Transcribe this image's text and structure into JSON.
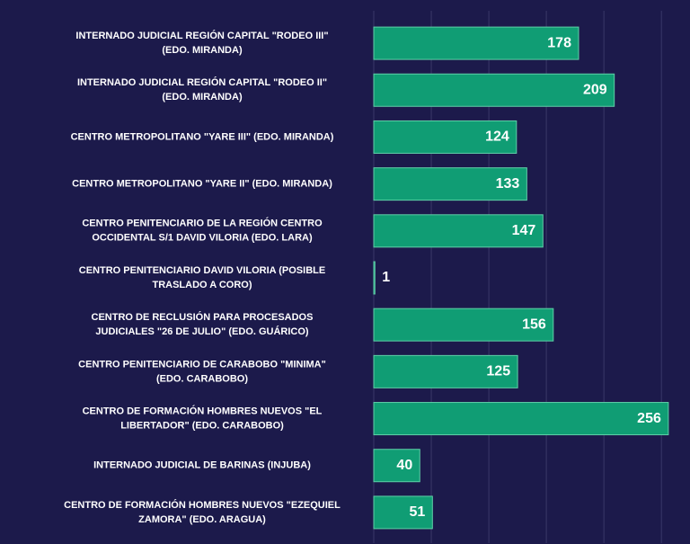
{
  "chart_data": {
    "type": "bar",
    "orientation": "horizontal",
    "categories": [
      [
        "INTERNADO JUDICIAL REGIÓN CAPITAL \"RODEO III\"",
        "(EDO. MIRANDA)"
      ],
      [
        "INTERNADO JUDICIAL REGIÓN CAPITAL \"RODEO II\"",
        "(EDO. MIRANDA)"
      ],
      [
        "CENTRO METROPOLITANO \"YARE III\" (EDO. MIRANDA)"
      ],
      [
        "CENTRO METROPOLITANO \"YARE II\" (EDO. MIRANDA)"
      ],
      [
        "CENTRO PENITENCIARIO DE LA REGIÓN CENTRO",
        "OCCIDENTAL S/1 DAVID VILORIA (EDO. LARA)"
      ],
      [
        "CENTRO PENITENCIARIO DAVID VILORIA (POSIBLE",
        "TRASLADO A CORO)"
      ],
      [
        "CENTRO DE RECLUSIÓN PARA PROCESADOS",
        "JUDICIALES \"26 DE JULIO\" (EDO. GUÁRICO)"
      ],
      [
        "CENTRO PENITENCIARIO DE CARABOBO \"MINIMA\"",
        "(EDO. CARABOBO)"
      ],
      [
        "CENTRO DE FORMACIÓN HOMBRES NUEVOS \"EL",
        "LIBERTADOR\" (EDO. CARABOBO)"
      ],
      [
        "INTERNADO JUDICIAL DE BARINAS (INJUBA)"
      ],
      [
        "CENTRO DE FORMACIÓN HOMBRES NUEVOS \"EZEQUIEL",
        "ZAMORA\" (EDO. ARAGUA)"
      ]
    ],
    "values": [
      178,
      209,
      124,
      133,
      147,
      1,
      156,
      125,
      256,
      40,
      51
    ],
    "color": "#109d74",
    "xlim": [
      0,
      260
    ],
    "xticks": [
      0,
      50,
      100,
      150,
      200,
      250
    ],
    "grid": true
  }
}
